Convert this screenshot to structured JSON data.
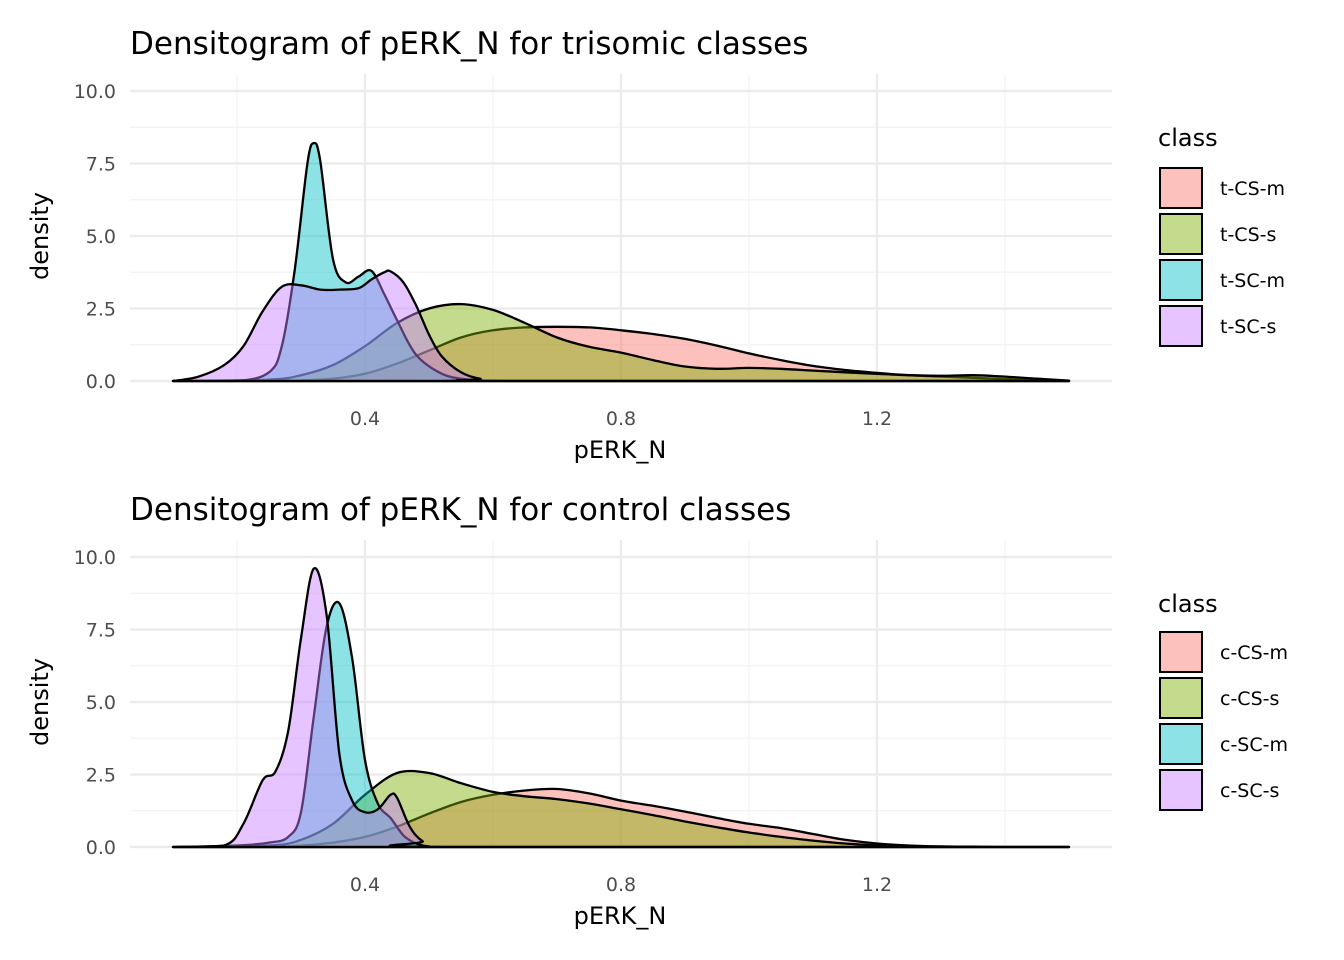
{
  "chart_data": [
    {
      "type": "area",
      "subtype": "density",
      "title": "Densitogram of pERK_N for trisomic classes",
      "xlabel": "pERK_N",
      "ylabel": "density",
      "xlim": [
        0.1,
        1.5
      ],
      "ylim": [
        0,
        10
      ],
      "x_ticks": [
        0.4,
        0.8,
        1.2
      ],
      "x_tick_labels": [
        "0.4",
        "0.8",
        "1.2"
      ],
      "y_ticks": [
        0,
        2.5,
        5,
        7.5,
        10
      ],
      "y_tick_labels": [
        "0.0",
        "2.5",
        "5.0",
        "7.5",
        "10.0"
      ],
      "grid": true,
      "legend": {
        "title": "class",
        "position": "right"
      },
      "series": [
        {
          "name": "t-CS-m",
          "color": "#F8766D",
          "x": [
            0.1,
            0.25,
            0.3,
            0.35,
            0.4,
            0.45,
            0.5,
            0.55,
            0.6,
            0.65,
            0.7,
            0.75,
            0.8,
            0.85,
            0.9,
            0.95,
            1.0,
            1.05,
            1.1,
            1.15,
            1.2,
            1.25,
            1.3,
            1.35,
            1.4,
            1.45,
            1.5
          ],
          "y": [
            0,
            0,
            0.02,
            0.08,
            0.25,
            0.6,
            1.05,
            1.5,
            1.75,
            1.85,
            1.87,
            1.85,
            1.75,
            1.62,
            1.45,
            1.22,
            0.95,
            0.72,
            0.52,
            0.38,
            0.28,
            0.2,
            0.15,
            0.11,
            0.07,
            0.03,
            0.01
          ]
        },
        {
          "name": "t-CS-s",
          "color": "#7CAE00",
          "x": [
            0.1,
            0.25,
            0.3,
            0.35,
            0.4,
            0.45,
            0.5,
            0.55,
            0.6,
            0.65,
            0.7,
            0.75,
            0.8,
            0.85,
            0.9,
            0.95,
            1.0,
            1.05,
            1.1,
            1.15,
            1.2,
            1.25,
            1.3,
            1.35,
            1.4,
            1.45,
            1.5
          ],
          "y": [
            0,
            0.05,
            0.2,
            0.55,
            1.2,
            2.0,
            2.5,
            2.65,
            2.45,
            2.0,
            1.5,
            1.18,
            0.98,
            0.72,
            0.5,
            0.42,
            0.45,
            0.42,
            0.36,
            0.3,
            0.25,
            0.2,
            0.18,
            0.2,
            0.15,
            0.08,
            0.01
          ]
        },
        {
          "name": "t-SC-m",
          "color": "#00BFC4",
          "x": [
            0.1,
            0.2,
            0.25,
            0.27,
            0.29,
            0.31,
            0.32,
            0.33,
            0.35,
            0.37,
            0.39,
            0.41,
            0.43,
            0.45,
            0.48,
            0.52,
            0.56,
            0.6,
            1.5
          ],
          "y": [
            0,
            0,
            0.3,
            1.2,
            3.8,
            7.5,
            8.2,
            7.6,
            4.2,
            3.4,
            3.6,
            3.8,
            3.0,
            2.1,
            0.9,
            0.25,
            0.05,
            0,
            0
          ]
        },
        {
          "name": "t-SC-s",
          "color": "#C77CFF",
          "x": [
            0.1,
            0.14,
            0.18,
            0.21,
            0.24,
            0.27,
            0.3,
            0.33,
            0.36,
            0.39,
            0.41,
            0.43,
            0.44,
            0.46,
            0.48,
            0.5,
            0.52,
            0.55,
            0.58,
            0.62,
            1.5
          ],
          "y": [
            0,
            0.15,
            0.55,
            1.2,
            2.4,
            3.25,
            3.3,
            3.15,
            3.15,
            3.2,
            3.5,
            3.75,
            3.78,
            3.4,
            2.6,
            1.6,
            0.85,
            0.3,
            0.08,
            0,
            0
          ]
        }
      ]
    },
    {
      "type": "area",
      "subtype": "density",
      "title": "Densitogram of pERK_N for control classes",
      "xlabel": "pERK_N",
      "ylabel": "density",
      "xlim": [
        0.1,
        1.5
      ],
      "ylim": [
        0,
        10
      ],
      "x_ticks": [
        0.4,
        0.8,
        1.2
      ],
      "x_tick_labels": [
        "0.4",
        "0.8",
        "1.2"
      ],
      "y_ticks": [
        0,
        2.5,
        5,
        7.5,
        10
      ],
      "y_tick_labels": [
        "0.0",
        "2.5",
        "5.0",
        "7.5",
        "10.0"
      ],
      "grid": true,
      "legend": {
        "title": "class",
        "position": "right"
      },
      "series": [
        {
          "name": "c-CS-m",
          "color": "#F8766D",
          "x": [
            0.1,
            0.25,
            0.3,
            0.35,
            0.4,
            0.45,
            0.5,
            0.55,
            0.6,
            0.65,
            0.7,
            0.75,
            0.8,
            0.85,
            0.9,
            0.95,
            1.0,
            1.05,
            1.1,
            1.15,
            1.2,
            1.25,
            1.3,
            1.35,
            1.4,
            1.45,
            1.5
          ],
          "y": [
            0,
            0,
            0.05,
            0.15,
            0.35,
            0.7,
            1.15,
            1.55,
            1.8,
            1.95,
            2.0,
            1.85,
            1.6,
            1.42,
            1.22,
            1.0,
            0.8,
            0.65,
            0.45,
            0.25,
            0.12,
            0.05,
            0.02,
            0.01,
            0,
            0,
            0
          ]
        },
        {
          "name": "c-CS-s",
          "color": "#7CAE00",
          "x": [
            0.1,
            0.25,
            0.3,
            0.35,
            0.4,
            0.45,
            0.5,
            0.55,
            0.6,
            0.65,
            0.7,
            0.75,
            0.8,
            0.85,
            0.9,
            0.95,
            1.0,
            1.05,
            1.1,
            1.15,
            1.2,
            1.25,
            1.3,
            1.35,
            1.4,
            1.45,
            1.5
          ],
          "y": [
            0,
            0.05,
            0.25,
            0.8,
            1.8,
            2.55,
            2.55,
            2.2,
            1.9,
            1.75,
            1.65,
            1.5,
            1.3,
            1.1,
            0.88,
            0.68,
            0.5,
            0.35,
            0.22,
            0.12,
            0.06,
            0.03,
            0.01,
            0,
            0,
            0,
            0
          ]
        },
        {
          "name": "c-SC-m",
          "color": "#00BFC4",
          "x": [
            0.1,
            0.2,
            0.25,
            0.28,
            0.3,
            0.32,
            0.34,
            0.36,
            0.38,
            0.4,
            0.42,
            0.44,
            0.46,
            0.48,
            0.5,
            0.52,
            1.5
          ],
          "y": [
            0,
            0.05,
            0.15,
            0.35,
            1.2,
            4.5,
            7.6,
            8.4,
            6.5,
            3.0,
            1.5,
            1.0,
            0.4,
            0.12,
            0.02,
            0,
            0
          ]
        },
        {
          "name": "c-SC-s",
          "color": "#C77CFF",
          "x": [
            0.1,
            0.18,
            0.21,
            0.24,
            0.26,
            0.28,
            0.3,
            0.32,
            0.34,
            0.36,
            0.38,
            0.4,
            0.42,
            0.44,
            0.45,
            0.47,
            0.49,
            0.52,
            1.5
          ],
          "y": [
            0,
            0.05,
            0.8,
            2.3,
            2.6,
            4.0,
            7.2,
            9.6,
            8.0,
            3.2,
            1.6,
            1.2,
            1.3,
            1.8,
            1.7,
            0.7,
            0.2,
            0,
            0
          ]
        }
      ]
    }
  ]
}
